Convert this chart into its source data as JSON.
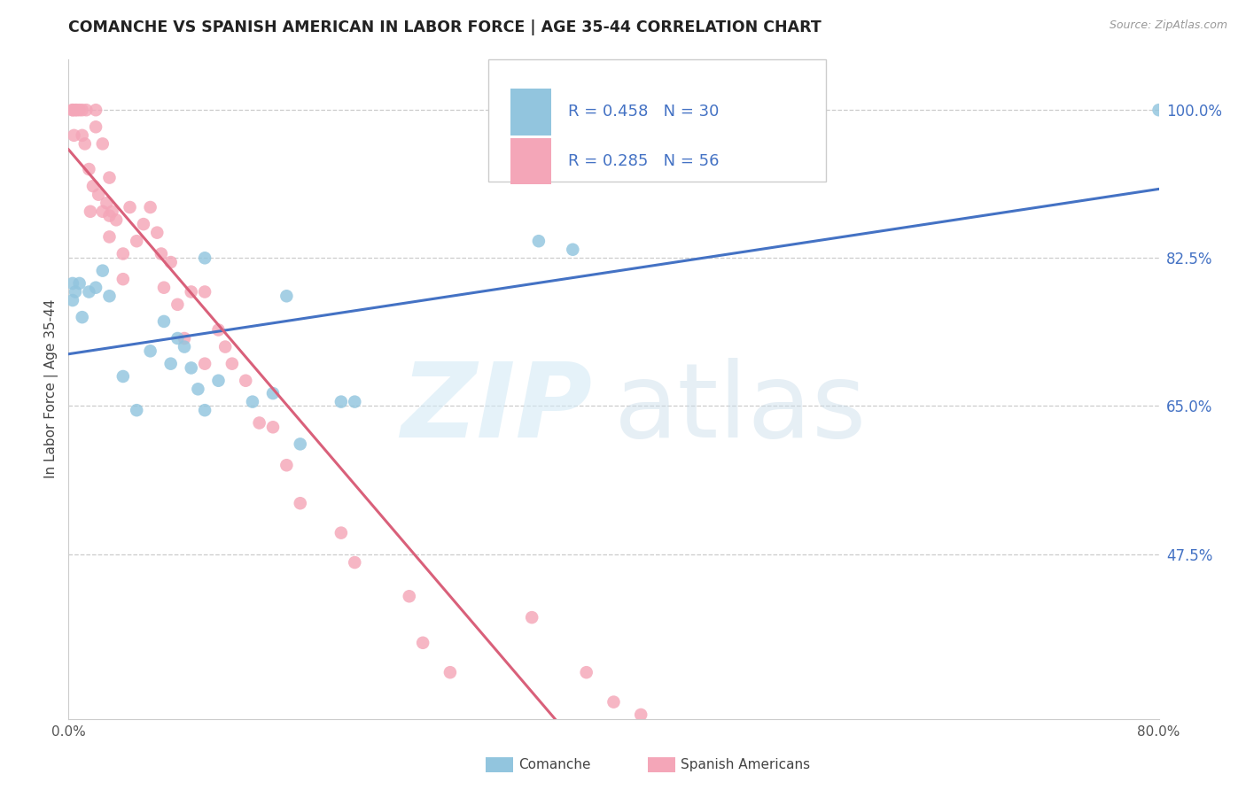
{
  "title": "COMANCHE VS SPANISH AMERICAN IN LABOR FORCE | AGE 35-44 CORRELATION CHART",
  "source": "Source: ZipAtlas.com",
  "ylabel": "In Labor Force | Age 35-44",
  "xlim": [
    0.0,
    0.8
  ],
  "ylim": [
    0.28,
    1.06
  ],
  "xtick_positions": [
    0.0,
    0.1,
    0.2,
    0.3,
    0.4,
    0.5,
    0.6,
    0.7,
    0.8
  ],
  "xticklabels": [
    "0.0%",
    "",
    "",
    "",
    "",
    "",
    "",
    "",
    "80.0%"
  ],
  "ytick_positions": [
    0.475,
    0.65,
    0.825,
    1.0
  ],
  "yticklabels": [
    "47.5%",
    "65.0%",
    "82.5%",
    "100.0%"
  ],
  "legend_comanche": "Comanche",
  "legend_spanish": "Spanish Americans",
  "R_comanche": "0.458",
  "N_comanche": "30",
  "R_spanish": "0.285",
  "N_spanish": "56",
  "comanche_color": "#92c5de",
  "spanish_color": "#f4a6b8",
  "line_comanche_color": "#4472c4",
  "line_spanish_color": "#d9607a",
  "comanche_x": [
    0.003,
    0.003,
    0.005,
    0.008,
    0.01,
    0.015,
    0.02,
    0.025,
    0.03,
    0.04,
    0.05,
    0.06,
    0.07,
    0.075,
    0.08,
    0.085,
    0.09,
    0.095,
    0.1,
    0.1,
    0.11,
    0.135,
    0.15,
    0.16,
    0.17,
    0.2,
    0.21,
    0.345,
    0.37,
    0.8
  ],
  "comanche_y": [
    0.795,
    0.775,
    0.785,
    0.795,
    0.755,
    0.785,
    0.79,
    0.81,
    0.78,
    0.685,
    0.645,
    0.715,
    0.75,
    0.7,
    0.73,
    0.72,
    0.695,
    0.67,
    0.645,
    0.825,
    0.68,
    0.655,
    0.665,
    0.78,
    0.605,
    0.655,
    0.655,
    0.845,
    0.835,
    1.0
  ],
  "spanish_x": [
    0.003,
    0.003,
    0.004,
    0.005,
    0.006,
    0.008,
    0.01,
    0.01,
    0.012,
    0.013,
    0.015,
    0.016,
    0.018,
    0.02,
    0.02,
    0.022,
    0.025,
    0.025,
    0.028,
    0.03,
    0.03,
    0.03,
    0.032,
    0.035,
    0.04,
    0.04,
    0.045,
    0.05,
    0.055,
    0.06,
    0.065,
    0.068,
    0.07,
    0.075,
    0.08,
    0.085,
    0.09,
    0.1,
    0.1,
    0.11,
    0.115,
    0.12,
    0.13,
    0.14,
    0.15,
    0.16,
    0.17,
    0.2,
    0.21,
    0.25,
    0.26,
    0.28,
    0.34,
    0.38,
    0.4,
    0.42
  ],
  "spanish_y": [
    1.0,
    1.0,
    0.97,
    1.0,
    1.0,
    1.0,
    1.0,
    0.97,
    0.96,
    1.0,
    0.93,
    0.88,
    0.91,
    1.0,
    0.98,
    0.9,
    0.88,
    0.96,
    0.89,
    0.875,
    0.92,
    0.85,
    0.88,
    0.87,
    0.83,
    0.8,
    0.885,
    0.845,
    0.865,
    0.885,
    0.855,
    0.83,
    0.79,
    0.82,
    0.77,
    0.73,
    0.785,
    0.785,
    0.7,
    0.74,
    0.72,
    0.7,
    0.68,
    0.63,
    0.625,
    0.58,
    0.535,
    0.5,
    0.465,
    0.425,
    0.37,
    0.335,
    0.4,
    0.335,
    0.3,
    0.285
  ]
}
